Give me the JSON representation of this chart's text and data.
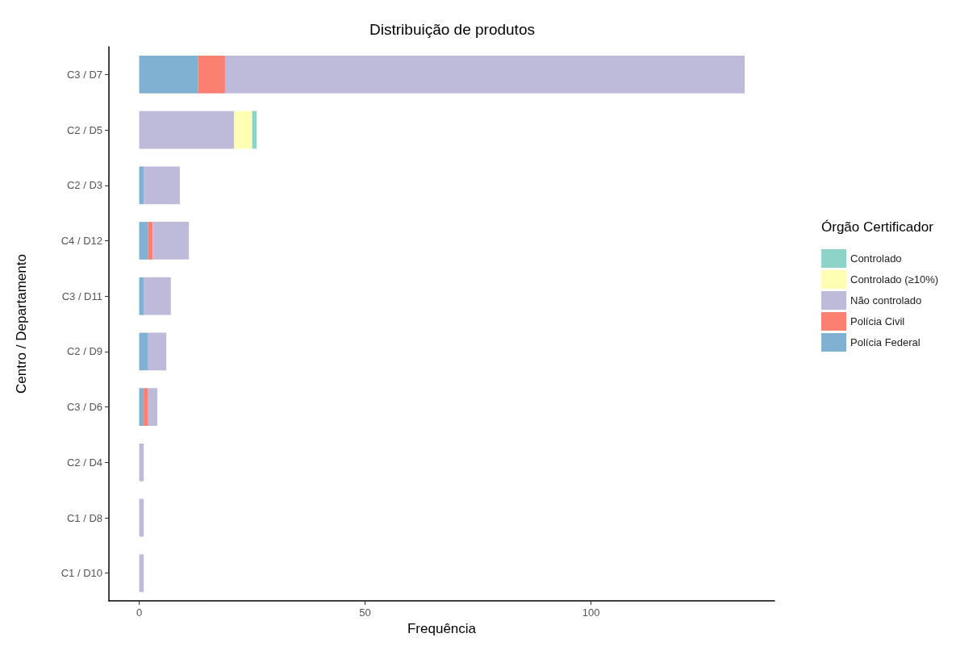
{
  "chart_data": {
    "type": "bar",
    "orientation": "horizontal",
    "stacked": true,
    "title": "Distribuição de produtos",
    "xlabel": "Frequência",
    "ylabel": "Centro / Departamento",
    "legend_title": "Órgão Certificador",
    "legend": "right",
    "grid": false,
    "categories": [
      "C3 / D7",
      "C2 / D5",
      "C2 / D3",
      "C4 / D12",
      "C3 / D11",
      "C2 / D9",
      "C3 / D6",
      "C2 / D4",
      "C1 / D8",
      "C1 / D10"
    ],
    "xlim": [
      -6.7,
      140.6
    ],
    "xticks": [
      0,
      50,
      100
    ],
    "series": [
      {
        "name": "Polícia Federal",
        "color": "#80b1d3",
        "values": [
          13,
          0,
          1,
          2,
          1,
          2,
          1,
          0,
          0,
          0
        ]
      },
      {
        "name": "Polícia Civil",
        "color": "#fb8072",
        "values": [
          6,
          0,
          0,
          1,
          0,
          0,
          1,
          0,
          0,
          0
        ]
      },
      {
        "name": "Não controlado",
        "color": "#bebada",
        "values": [
          115,
          21,
          8,
          8,
          6,
          4,
          2,
          1,
          1,
          1
        ]
      },
      {
        "name": "Controlado (≥10%)",
        "color": "#ffffb3",
        "values": [
          0,
          4,
          0,
          0,
          0,
          0,
          0,
          0,
          0,
          0
        ]
      },
      {
        "name": "Controlado",
        "color": "#8dd3c7",
        "values": [
          0,
          1,
          0,
          0,
          0,
          0,
          0,
          0,
          0,
          0
        ]
      }
    ]
  }
}
